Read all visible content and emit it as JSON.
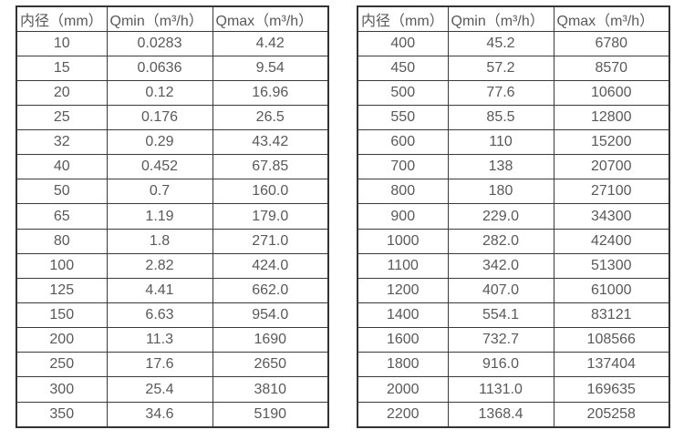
{
  "page": {
    "background_color": "#ffffff",
    "text_color": "#595959",
    "border_color": "#333333"
  },
  "chart_data": [
    {
      "type": "table",
      "title": "",
      "columns": [
        "内径（mm）",
        "Qmin（m³/h）",
        "Qmax（m³/h）"
      ],
      "rows": [
        [
          "10",
          "0.0283",
          "4.42"
        ],
        [
          "15",
          "0.0636",
          "9.54"
        ],
        [
          "20",
          "0.12",
          "16.96"
        ],
        [
          "25",
          "0.176",
          "26.5"
        ],
        [
          "32",
          "0.29",
          "43.42"
        ],
        [
          "40",
          "0.452",
          "67.85"
        ],
        [
          "50",
          "0.7",
          "160.0"
        ],
        [
          "65",
          "1.19",
          "179.0"
        ],
        [
          "80",
          "1.8",
          "271.0"
        ],
        [
          "100",
          "2.82",
          "424.0"
        ],
        [
          "125",
          "4.41",
          "662.0"
        ],
        [
          "150",
          "6.63",
          "954.0"
        ],
        [
          "200",
          "11.3",
          "1690"
        ],
        [
          "250",
          "17.6",
          "2650"
        ],
        [
          "300",
          "25.4",
          "3810"
        ],
        [
          "350",
          "34.6",
          "5190"
        ]
      ]
    },
    {
      "type": "table",
      "title": "",
      "columns": [
        "内径（mm）",
        "Qmin（m³/h）",
        "Qmax（m³/h）"
      ],
      "rows": [
        [
          "400",
          "45.2",
          "6780"
        ],
        [
          "450",
          "57.2",
          "8570"
        ],
        [
          "500",
          "77.6",
          "10600"
        ],
        [
          "550",
          "85.5",
          "12800"
        ],
        [
          "600",
          "110",
          "15200"
        ],
        [
          "700",
          "138",
          "20700"
        ],
        [
          "800",
          "180",
          "27100"
        ],
        [
          "900",
          "229.0",
          "34300"
        ],
        [
          "1000",
          "282.0",
          "42400"
        ],
        [
          "1100",
          "342.0",
          "51300"
        ],
        [
          "1200",
          "407.0",
          "61000"
        ],
        [
          "1400",
          "554.1",
          "83121"
        ],
        [
          "1600",
          "732.7",
          "108566"
        ],
        [
          "1800",
          "916.0",
          "137404"
        ],
        [
          "2000",
          "1131.0",
          "169635"
        ],
        [
          "2200",
          "1368.4",
          "205258"
        ]
      ]
    }
  ]
}
